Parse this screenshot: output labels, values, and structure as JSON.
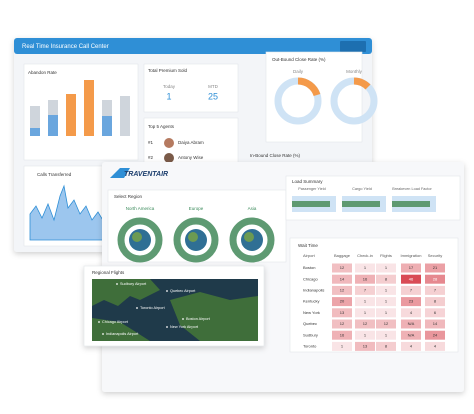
{
  "back": {
    "title": "Real Time Insurance Call Center",
    "abandon_rate": {
      "title": "Abandon Rate"
    },
    "premium": {
      "title": "Total Premium Sold",
      "today_label": "Today",
      "today_value": 1,
      "mtd_label": "MTD",
      "mtd_value": 25
    },
    "agents": {
      "title": "Top 5 Agents",
      "rows": [
        [
          "#1",
          "Daiya Abram"
        ],
        [
          "#2",
          "Antony Wise"
        ]
      ]
    },
    "outbound": {
      "title": "Out-Bound Close Rate (%)",
      "daily": "Daily",
      "monthly": "Monthly"
    },
    "inbound": {
      "title": "In-Bound Close Rate (%)"
    },
    "calls": {
      "title": "Calls Transferred"
    }
  },
  "front": {
    "logo": "TRAVENTAIR",
    "region": {
      "title": "Select Region",
      "items": [
        "North America",
        "Europe",
        "Asia"
      ]
    },
    "load": {
      "title": "Load Summary",
      "items": [
        "Passenger Yield",
        "Cargo Yield",
        "Breakeven Load Factor"
      ]
    },
    "flights": {
      "title": "Regional Flights",
      "labels": [
        "Sudbury Airport",
        "Quebec Airport",
        "Toronto Airport",
        "Chicago Airport",
        "Boston Airport",
        "New York Airport",
        "Indianapolis Airport"
      ]
    },
    "wait": {
      "title": "Wait Time",
      "header": [
        "Airport",
        "Baggage",
        "Check-in",
        "Flights",
        "Immigration",
        "Security"
      ],
      "rows": [
        [
          "Boston",
          12,
          1,
          1,
          17,
          21
        ],
        [
          "Chicago",
          14,
          16,
          8,
          46,
          28
        ],
        [
          "Indianapolis",
          12,
          7,
          1,
          7,
          7
        ],
        [
          "Kentucky",
          20,
          1,
          1,
          23,
          8
        ],
        [
          "New York",
          13,
          1,
          1,
          4,
          6
        ],
        [
          "Quebec",
          12,
          12,
          12,
          "N/A",
          14
        ],
        [
          "Sudbury",
          16,
          1,
          1,
          "N/A",
          24
        ],
        [
          "Toronto",
          1,
          13,
          8,
          4,
          4
        ]
      ]
    }
  }
}
